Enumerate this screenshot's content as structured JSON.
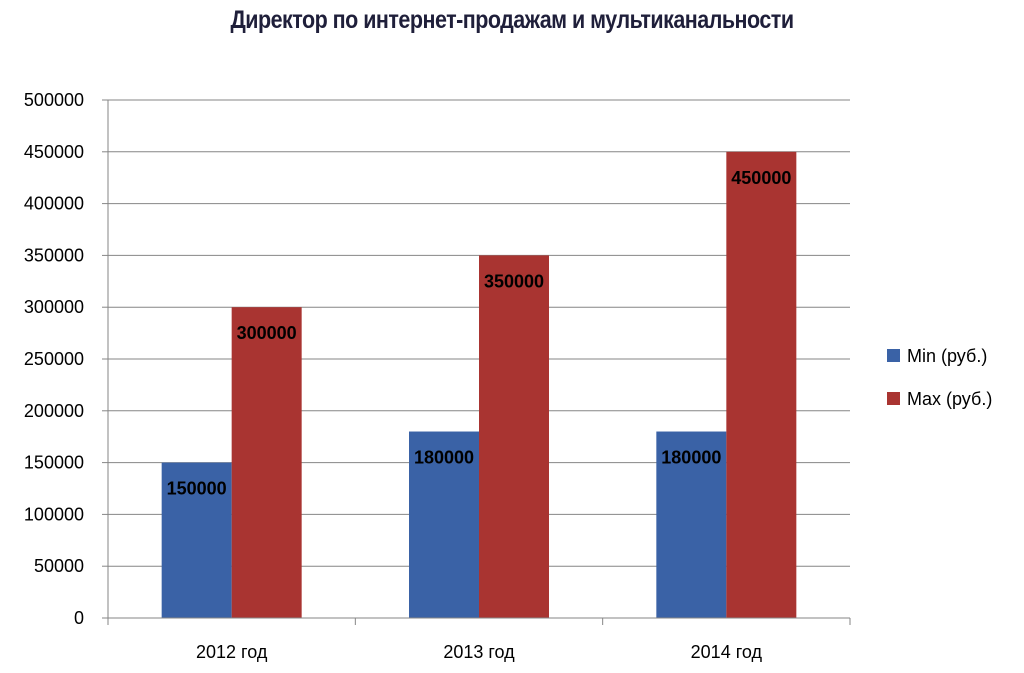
{
  "chart_data": {
    "type": "bar",
    "title": "Директор по интернет-продажам  и мультиканальности",
    "categories": [
      "2012 год",
      "2013 год",
      "2014 год"
    ],
    "series": [
      {
        "name": "Min (руб.)",
        "values": [
          150000,
          180000,
          180000
        ],
        "color": "#3A62A6"
      },
      {
        "name": "Max (руб.)",
        "values": [
          300000,
          350000,
          450000
        ],
        "color": "#A93431"
      }
    ],
    "ylim": [
      0,
      500000
    ],
    "yticks": [
      "0",
      "50000",
      "100000",
      "150000",
      "200000",
      "250000",
      "300000",
      "350000",
      "400000",
      "450000",
      "500000"
    ],
    "grid": true,
    "legend_position": "right",
    "data_labels": true
  }
}
